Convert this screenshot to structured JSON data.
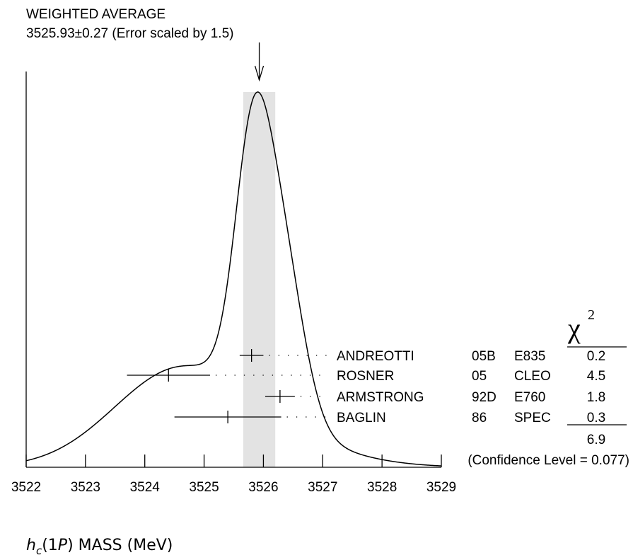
{
  "chart_data": {
    "type": "ideogram",
    "title": "WEIGHTED AVERAGE",
    "subtitle": "3525.93±0.27 (Error scaled by 1.5)",
    "weighted_average": 3525.93,
    "weighted_error": 0.27,
    "error_scale": 1.5,
    "xlabel": "MASS (MeV)",
    "xlabel_symbol": "h",
    "xlabel_subscript": "c",
    "xlabel_paren_open": "(1",
    "xlabel_paren_var": "P",
    "xlabel_paren_close": ")",
    "xlim": [
      3522,
      3529
    ],
    "xticks": [
      "3522",
      "3523",
      "3524",
      "3525",
      "3526",
      "3527",
      "3528",
      "3529"
    ],
    "chi2_header": "χ",
    "chi2_sup": "2",
    "measurements": [
      {
        "name": "ANDREOTTI",
        "year": "05B",
        "experiment": "E835",
        "value": 3525.8,
        "error": 0.2,
        "chi2": "0.2"
      },
      {
        "name": "ROSNER",
        "year": "05",
        "experiment": "CLEO",
        "value": 3524.4,
        "error": 0.7,
        "chi2": "4.5"
      },
      {
        "name": "ARMSTRONG",
        "year": "92D",
        "experiment": "E760",
        "value": 3526.28,
        "error": 0.25,
        "chi2": "1.8"
      },
      {
        "name": "BAGLIN",
        "year": "86",
        "experiment": "SPEC",
        "value": 3525.4,
        "error": 0.9,
        "chi2": "0.3"
      }
    ],
    "chi2_total": "6.9",
    "confidence_level": "(Confidence Level = 0.077)"
  }
}
